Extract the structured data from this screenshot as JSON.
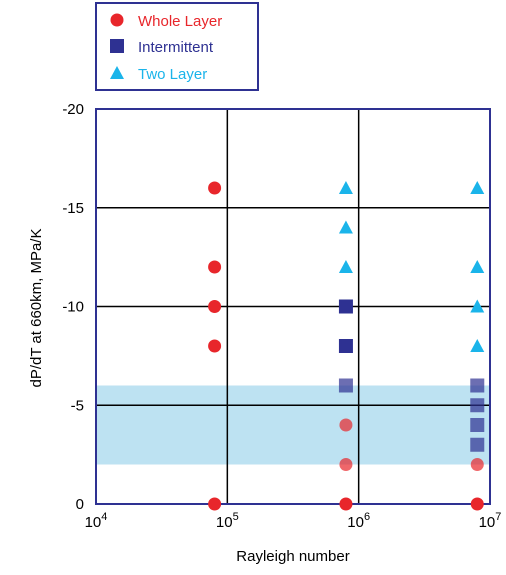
{
  "chart_data": {
    "type": "scatter",
    "x_scale": "log",
    "xlim": [
      10000,
      10000000
    ],
    "ylim": [
      0,
      -20
    ],
    "y_inverted": true,
    "xlabel": "Rayleigh number",
    "ylabel": "dP/dT at 660km, MPa/K",
    "x_ticks": [
      {
        "value": 10000,
        "base": "10",
        "exp": "4"
      },
      {
        "value": 100000,
        "base": "10",
        "exp": "5"
      },
      {
        "value": 1000000,
        "base": "10",
        "exp": "6"
      },
      {
        "value": 10000000,
        "base": "10",
        "exp": "7"
      }
    ],
    "y_ticks": [
      {
        "value": -20,
        "label": "-20"
      },
      {
        "value": -15,
        "label": "-15"
      },
      {
        "value": -10,
        "label": "-10"
      },
      {
        "value": -5,
        "label": "-5"
      },
      {
        "value": 0,
        "label": "0"
      }
    ],
    "grid": true,
    "grid_x": [
      100000,
      1000000
    ],
    "grid_y": [
      -15,
      -10,
      -5
    ],
    "shaded_band": {
      "y_from": -2,
      "y_to": -6,
      "color": "#bde2f2"
    },
    "legend_position": "top-left",
    "series": [
      {
        "name": "Whole Layer",
        "marker": "circle",
        "color": "#e8262b",
        "points": [
          [
            80000,
            -16
          ],
          [
            80000,
            -12
          ],
          [
            80000,
            -10
          ],
          [
            80000,
            -8
          ],
          [
            80000,
            0
          ],
          [
            800000,
            -4
          ],
          [
            800000,
            -2
          ],
          [
            800000,
            0
          ],
          [
            8000000,
            -2
          ],
          [
            8000000,
            0
          ]
        ]
      },
      {
        "name": "Intermittent",
        "marker": "square",
        "color": "#2e3192",
        "points": [
          [
            800000,
            -10
          ],
          [
            800000,
            -8
          ],
          [
            800000,
            -6
          ],
          [
            8000000,
            -6
          ],
          [
            8000000,
            -5
          ],
          [
            8000000,
            -4
          ],
          [
            8000000,
            -3
          ]
        ]
      },
      {
        "name": "Two Layer",
        "marker": "triangle",
        "color": "#1ab4ea",
        "points": [
          [
            800000,
            -16
          ],
          [
            800000,
            -14
          ],
          [
            800000,
            -12
          ],
          [
            8000000,
            -16
          ],
          [
            8000000,
            -12
          ],
          [
            8000000,
            -10
          ],
          [
            8000000,
            -8
          ]
        ]
      }
    ]
  },
  "colors": {
    "frame": "#2e3192",
    "grid": "#000000",
    "band": "#bde2f2"
  }
}
